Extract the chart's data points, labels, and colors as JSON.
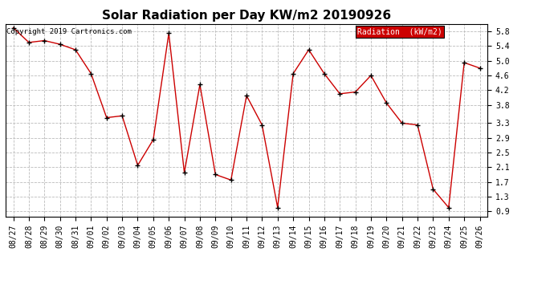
{
  "title": "Solar Radiation per Day KW/m2 20190926",
  "copyright_text": "Copyright 2019 Cartronics.com",
  "legend_label": "Radiation  (kW/m2)",
  "dates": [
    "08/27",
    "08/28",
    "08/29",
    "08/30",
    "08/31",
    "09/01",
    "09/02",
    "09/03",
    "09/04",
    "09/05",
    "09/06",
    "09/07",
    "09/08",
    "09/09",
    "09/10",
    "09/11",
    "09/12",
    "09/13",
    "09/14",
    "09/15",
    "09/16",
    "09/17",
    "09/18",
    "09/19",
    "09/20",
    "09/21",
    "09/22",
    "09/23",
    "09/24",
    "09/25",
    "09/26"
  ],
  "values": [
    5.9,
    5.5,
    5.55,
    5.45,
    5.3,
    4.65,
    3.45,
    3.5,
    2.15,
    2.85,
    5.75,
    1.95,
    4.35,
    1.9,
    1.75,
    4.05,
    3.25,
    1.0,
    4.65,
    5.3,
    4.65,
    4.1,
    4.15,
    4.6,
    3.85,
    3.3,
    3.25,
    1.5,
    1.0,
    4.95,
    4.8
  ],
  "line_color": "#cc0000",
  "marker_color": "black",
  "bg_color": "#ffffff",
  "plot_bg_color": "#ffffff",
  "grid_color": "#bbbbbb",
  "ylim": [
    0.75,
    6.0
  ],
  "yticks": [
    0.9,
    1.3,
    1.7,
    2.1,
    2.5,
    2.9,
    3.3,
    3.8,
    4.2,
    4.6,
    5.0,
    5.4,
    5.8
  ],
  "title_fontsize": 11,
  "tick_fontsize": 7,
  "legend_bg": "#cc0000",
  "legend_text_color": "#ffffff"
}
